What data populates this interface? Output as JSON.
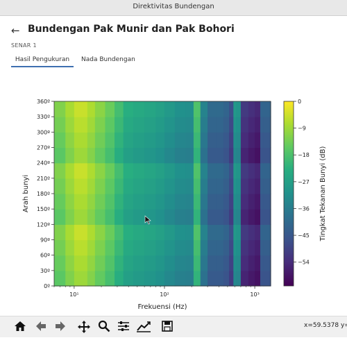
{
  "window": {
    "title": "Direktivitas Bundengan"
  },
  "header": {
    "title": "Bundengan Pak Munir dan Pak Bohori",
    "back_icon": "arrow-left-icon"
  },
  "section": {
    "label": "SENAR 1"
  },
  "tabs": [
    {
      "label": "Hasil Pengukuran",
      "active": true
    },
    {
      "label": "Nada Bundengan",
      "active": false
    }
  ],
  "toolbar": {
    "buttons": [
      "home-icon",
      "back-icon",
      "forward-icon",
      "pan-icon",
      "zoom-icon",
      "configure-subplots-icon",
      "edit-axis-icon",
      "save-icon"
    ],
    "coord_x": "x=59.5378",
    "coord_y": "y="
  },
  "chart_data": {
    "type": "heatmap",
    "xlabel": "Frekuensi (Hz)",
    "ylabel": "Arah bunyi",
    "colorbar_label": "Tingkat Tekanan Bunyi (dB)",
    "x_scale": "log",
    "xlim": [
      6,
      1500
    ],
    "ylim": [
      0,
      360
    ],
    "x_tick_values": [
      10,
      100,
      1000
    ],
    "x_tick_labels": [
      "10¹",
      "10²",
      "10³"
    ],
    "y_ticks": [
      "0º",
      "30º",
      "60º",
      "90º",
      "120º",
      "150º",
      "180º",
      "210º",
      "240º",
      "270º",
      "300º",
      "330º",
      "360º"
    ],
    "colorbar_range": [
      -62,
      0
    ],
    "colorbar_ticks": [
      "0",
      "−9",
      "−18",
      "−27",
      "−36",
      "−45",
      "−54"
    ],
    "colormap": "viridis",
    "x_bands_hz": [
      6,
      8,
      10,
      12,
      14,
      17,
      22,
      28,
      35,
      45,
      60,
      80,
      100,
      130,
      170,
      210,
      230,
      250,
      300,
      380,
      450,
      520,
      580,
      620,
      700,
      850,
      1000,
      1150,
      1250,
      1500
    ],
    "y_rows_deg": [
      0,
      30,
      60,
      90,
      120,
      150,
      180,
      210,
      240,
      270,
      300,
      330,
      360
    ],
    "level_by_band_db": [
      -16,
      -12,
      -8,
      -6,
      -8,
      -11,
      -15,
      -18,
      -24,
      -26,
      -27,
      -28,
      -30,
      -32,
      -34,
      -33,
      -6,
      -33,
      -40,
      -45,
      -40,
      -48,
      -50,
      -12,
      -52,
      -55,
      -56,
      -58,
      -30,
      -58
    ]
  }
}
